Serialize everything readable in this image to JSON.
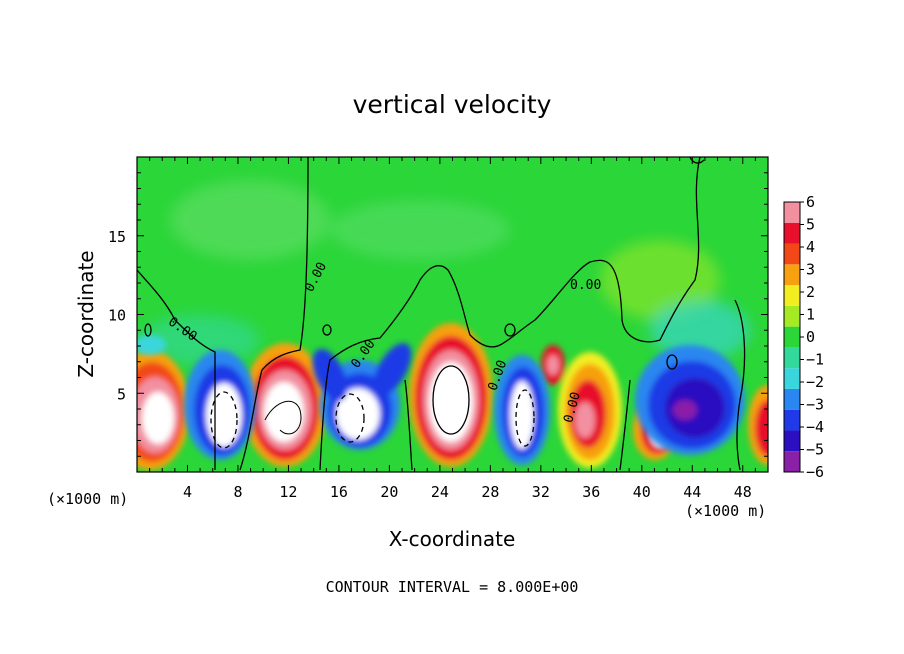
{
  "chart_data": {
    "type": "heatmap",
    "title": "vertical velocity",
    "xlabel": "X-coordinate",
    "ylabel": "Z-coordinate",
    "x_unit_left": "(×1000 m)",
    "x_unit_right": "(×1000 m)",
    "xlim": [
      0,
      50
    ],
    "ylim": [
      0,
      20
    ],
    "x_ticks": [
      4,
      8,
      12,
      16,
      20,
      24,
      28,
      32,
      36,
      40,
      44,
      48
    ],
    "y_ticks": [
      5,
      10,
      15
    ],
    "colorbar": {
      "levels": [
        -6,
        -5,
        -4,
        -3,
        -2,
        -1,
        0,
        1,
        2,
        3,
        4,
        5,
        6
      ],
      "colors": [
        "#8a1fa8",
        "#2b0fc0",
        "#1f3ae6",
        "#2a86f0",
        "#3ad6dd",
        "#33d89c",
        "#2bd639",
        "#a6ea24",
        "#f2ee22",
        "#f7a010",
        "#f24818",
        "#e8102c",
        "#f290a0"
      ]
    },
    "contour_interval_text": "CONTOUR INTERVAL = 8.000E+00",
    "contour_labels": [
      "0.00",
      "0.00",
      "0.00",
      "0.00",
      "0.00",
      "0.00"
    ],
    "features": [
      {
        "name": "updraft",
        "x": 1.2,
        "z": 3.5,
        "value": 8
      },
      {
        "name": "downdraft",
        "x": 6.0,
        "z": 3.8,
        "value": -6
      },
      {
        "name": "updraft",
        "x": 11.5,
        "z": 3.5,
        "value": 8
      },
      {
        "name": "downdraft",
        "x": 17.5,
        "z": 3.5,
        "value": -6
      },
      {
        "name": "updraft",
        "x": 25.0,
        "z": 4.5,
        "value": 10
      },
      {
        "name": "downdraft",
        "x": 30.5,
        "z": 3.5,
        "value": -6
      },
      {
        "name": "updraft",
        "x": 35.5,
        "z": 3.5,
        "value": 7
      },
      {
        "name": "updraft",
        "x": 41.0,
        "z": 2.5,
        "value": 6
      },
      {
        "name": "downdraft",
        "x": 44.0,
        "z": 4.0,
        "value": -6
      },
      {
        "name": "updraft",
        "x": 49.8,
        "z": 3.0,
        "value": 6
      }
    ]
  }
}
